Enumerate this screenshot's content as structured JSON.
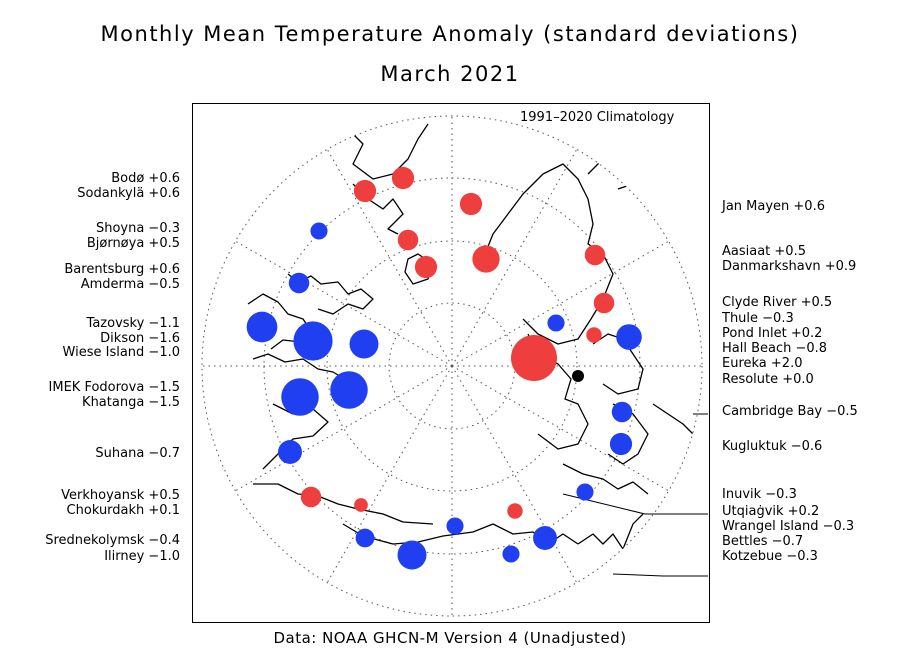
{
  "title": "Monthly Mean Temperature Anomaly (standard deviations)",
  "subtitle": "March 2021",
  "climatology_label": "1991–2020 Climatology",
  "footer": "Data: NOAA GHCN-M Version 4 (Unadjusted)",
  "colors": {
    "positive": "#ee3e3e",
    "negative": "#1f3ff0",
    "zero": "#000000"
  },
  "left_labels": [
    "Bodø +0.6",
    "Sodankylä +0.6",
    "Shoyna −0.3",
    "Bjørnøya +0.5",
    "Barentsburg +0.6",
    "Amderma −0.5",
    "Tazovsky −1.1",
    "Dikson −1.6",
    "Wiese Island −1.0",
    "IMEK Fodorova −1.5",
    "Khatanga −1.5",
    "Suhana −0.7",
    "Verkhoyansk +0.5",
    "Chokurdakh +0.1",
    "Srednekolymsk −0.4",
    "Ilirney −1.0"
  ],
  "right_labels": [
    "Jan Mayen +0.6",
    "Aasiaat +0.5",
    "Danmarkshavn +0.9",
    "Clyde River +0.5",
    "Thule −0.3",
    "Pond Inlet +0.2",
    "Hall Beach −0.8",
    "Eureka +2.0",
    "Resolute +0.0",
    "Cambridge Bay −0.5",
    "Kugluktuk −0.6",
    "Inuvik −0.3",
    "Utqiaġvik +0.2",
    "Wrangel Island −0.3",
    "Bettles −0.7",
    "Kotzebue −0.3"
  ],
  "stations": [
    {
      "name": "Bodø",
      "anomaly": 0.6
    },
    {
      "name": "Sodankylä",
      "anomaly": 0.6
    },
    {
      "name": "Shoyna",
      "anomaly": -0.3
    },
    {
      "name": "Bjørnøya",
      "anomaly": 0.5
    },
    {
      "name": "Barentsburg",
      "anomaly": 0.6
    },
    {
      "name": "Amderma",
      "anomaly": -0.5
    },
    {
      "name": "Tazovsky",
      "anomaly": -1.1
    },
    {
      "name": "Dikson",
      "anomaly": -1.6
    },
    {
      "name": "Wiese Island",
      "anomaly": -1.0
    },
    {
      "name": "IMEK Fodorova",
      "anomaly": -1.5
    },
    {
      "name": "Khatanga",
      "anomaly": -1.5
    },
    {
      "name": "Suhana",
      "anomaly": -0.7
    },
    {
      "name": "Verkhoyansk",
      "anomaly": 0.5
    },
    {
      "name": "Chokurdakh",
      "anomaly": 0.1
    },
    {
      "name": "Srednekolymsk",
      "anomaly": -0.4
    },
    {
      "name": "Ilirney",
      "anomaly": -1.0
    },
    {
      "name": "Jan Mayen",
      "anomaly": 0.6
    },
    {
      "name": "Aasiaat",
      "anomaly": 0.5
    },
    {
      "name": "Danmarkshavn",
      "anomaly": 0.9
    },
    {
      "name": "Clyde River",
      "anomaly": 0.5
    },
    {
      "name": "Thule",
      "anomaly": -0.3
    },
    {
      "name": "Pond Inlet",
      "anomaly": 0.2
    },
    {
      "name": "Hall Beach",
      "anomaly": -0.8
    },
    {
      "name": "Eureka",
      "anomaly": 2.0
    },
    {
      "name": "Resolute",
      "anomaly": 0.0
    },
    {
      "name": "Cambridge Bay",
      "anomaly": -0.5
    },
    {
      "name": "Kugluktuk",
      "anomaly": -0.6
    },
    {
      "name": "Inuvik",
      "anomaly": -0.3
    },
    {
      "name": "Utqiaġvik",
      "anomaly": 0.2
    },
    {
      "name": "Wrangel Island",
      "anomaly": -0.3
    },
    {
      "name": "Bettles",
      "anomaly": -0.7
    },
    {
      "name": "Kotzebue",
      "anomaly": -0.3
    }
  ]
}
